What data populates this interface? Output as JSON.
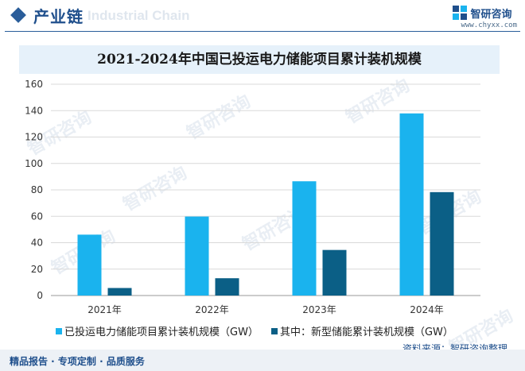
{
  "header": {
    "title": "产业链",
    "ghost_text": "Industrial Chain",
    "brand_name": "智研咨询",
    "brand_url": "www.chyxx.com",
    "accent_color": "#1f4f8c"
  },
  "watermark_text": "智研咨询",
  "source_text": "资料来源：智研咨询整理",
  "footer_text": "精品报告 · 专项定制 · 品质服务",
  "chart_data": {
    "type": "bar",
    "title": "2021-2024年中国已投运电力储能项目累计装机规模",
    "categories": [
      "2021年",
      "2022年",
      "2023年",
      "2024年"
    ],
    "series": [
      {
        "name": "已投运电力储能项目累计装机规模（GW）",
        "values": [
          46.1,
          59.8,
          86.5,
          137.9
        ],
        "color": "#1ab3ee"
      },
      {
        "name": "其中：新型储能累计装机规模（GW）",
        "values": [
          5.7,
          13.1,
          34.5,
          78.3
        ],
        "color": "#0b5f86"
      }
    ],
    "ylim": [
      0,
      160
    ],
    "yticks": [
      0,
      20,
      40,
      60,
      80,
      100,
      120,
      140,
      160
    ],
    "grid": true,
    "legend_position": "bottom",
    "xlabel": "",
    "ylabel": ""
  }
}
